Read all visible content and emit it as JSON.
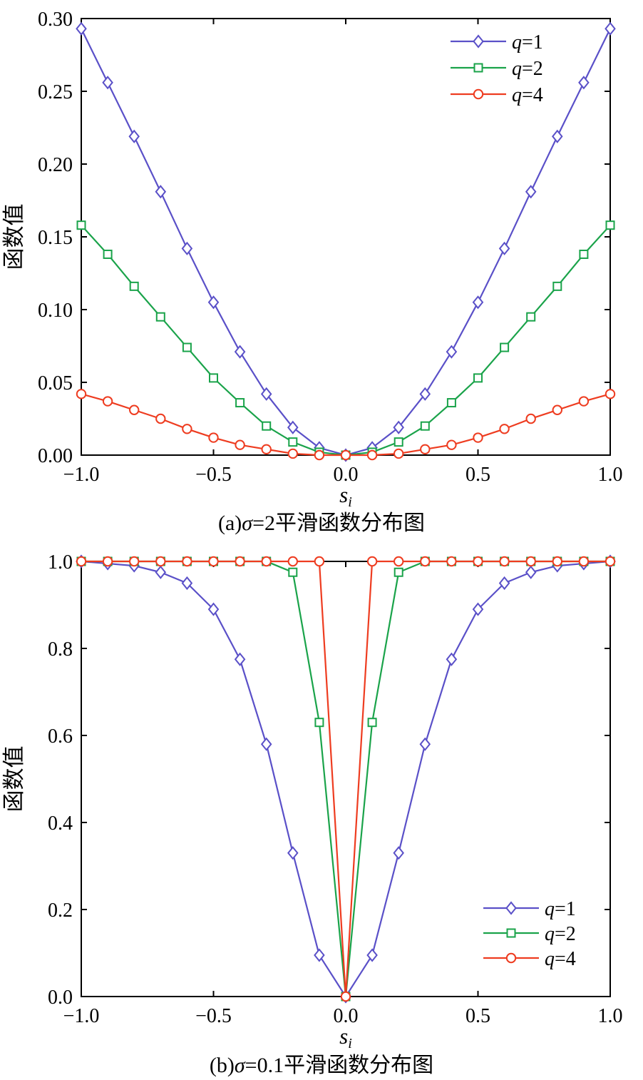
{
  "accent_colors": {
    "q1_blue": "#5a50c8",
    "q2_green": "#1aa34a",
    "q4_red": "#ee3c20"
  },
  "chart_data": [
    {
      "type": "line",
      "title": "",
      "caption_prefix": "(a)",
      "caption_symbol": "σ",
      "caption_rest": "=2平滑函数分布图",
      "xlabel_main": "s",
      "xlabel_sub": "i",
      "ylabel": "函数值",
      "xlim": [
        -1,
        1
      ],
      "ylim": [
        0,
        0.3
      ],
      "grid": false,
      "legend_position": "top-right",
      "xticks": [
        {
          "v": -1.0,
          "label": "−1.0"
        },
        {
          "v": -0.5,
          "label": "−0.5"
        },
        {
          "v": 0.0,
          "label": "0.0"
        },
        {
          "v": 0.5,
          "label": "0.5"
        },
        {
          "v": 1.0,
          "label": "1.0"
        }
      ],
      "yticks": [
        {
          "v": 0.0,
          "label": "0.00"
        },
        {
          "v": 0.05,
          "label": "0.05"
        },
        {
          "v": 0.1,
          "label": "0.10"
        },
        {
          "v": 0.15,
          "label": "0.15"
        },
        {
          "v": 0.2,
          "label": "0.20"
        },
        {
          "v": 0.25,
          "label": "0.25"
        },
        {
          "v": 0.3,
          "label": "0.30"
        }
      ],
      "x": [
        -1.0,
        -0.9,
        -0.8,
        -0.7,
        -0.6,
        -0.5,
        -0.4,
        -0.3,
        -0.2,
        -0.1,
        0.0,
        0.1,
        0.2,
        0.3,
        0.4,
        0.5,
        0.6,
        0.7,
        0.8,
        0.9,
        1.0
      ],
      "series": [
        {
          "name": "q=1",
          "label_var": "q",
          "label_rest": "=1",
          "color": "#5a50c8",
          "marker": "diamond",
          "values": [
            0.293,
            0.256,
            0.219,
            0.181,
            0.142,
            0.105,
            0.071,
            0.042,
            0.019,
            0.005,
            0.0,
            0.005,
            0.019,
            0.042,
            0.071,
            0.105,
            0.142,
            0.181,
            0.219,
            0.256,
            0.293
          ]
        },
        {
          "name": "q=2",
          "label_var": "q",
          "label_rest": "=2",
          "color": "#1aa34a",
          "marker": "square",
          "values": [
            0.158,
            0.138,
            0.116,
            0.095,
            0.074,
            0.053,
            0.036,
            0.02,
            0.009,
            0.002,
            0.0,
            0.002,
            0.009,
            0.02,
            0.036,
            0.053,
            0.074,
            0.095,
            0.116,
            0.138,
            0.158
          ]
        },
        {
          "name": "q=4",
          "label_var": "q",
          "label_rest": "=4",
          "color": "#ee3c20",
          "marker": "circle",
          "values": [
            0.042,
            0.037,
            0.031,
            0.025,
            0.018,
            0.012,
            0.007,
            0.004,
            0.001,
            0.0,
            0.0,
            0.0,
            0.001,
            0.004,
            0.007,
            0.012,
            0.018,
            0.025,
            0.031,
            0.037,
            0.042
          ]
        }
      ]
    },
    {
      "type": "line",
      "title": "",
      "caption_prefix": "(b)",
      "caption_symbol": "σ",
      "caption_rest": "=0.1平滑函数分布图",
      "xlabel_main": "s",
      "xlabel_sub": "i",
      "ylabel": "函数值",
      "xlim": [
        -1,
        1
      ],
      "ylim": [
        0,
        1.0
      ],
      "grid": false,
      "legend_position": "lower-right",
      "xticks": [
        {
          "v": -1.0,
          "label": "−1.0"
        },
        {
          "v": -0.5,
          "label": "−0.5"
        },
        {
          "v": 0.0,
          "label": "0.0"
        },
        {
          "v": 0.5,
          "label": "0.5"
        },
        {
          "v": 1.0,
          "label": "1.0"
        }
      ],
      "yticks": [
        {
          "v": 0.0,
          "label": "0.0"
        },
        {
          "v": 0.2,
          "label": "0.2"
        },
        {
          "v": 0.4,
          "label": "0.4"
        },
        {
          "v": 0.6,
          "label": "0.6"
        },
        {
          "v": 0.8,
          "label": "0.8"
        },
        {
          "v": 1.0,
          "label": "1.0"
        }
      ],
      "x": [
        -1.0,
        -0.9,
        -0.8,
        -0.7,
        -0.6,
        -0.5,
        -0.4,
        -0.3,
        -0.2,
        -0.1,
        0.0,
        0.1,
        0.2,
        0.3,
        0.4,
        0.5,
        0.6,
        0.7,
        0.8,
        0.9,
        1.0
      ],
      "series": [
        {
          "name": "q=1",
          "label_var": "q",
          "label_rest": "=1",
          "color": "#5a50c8",
          "marker": "diamond",
          "values": [
            1.0,
            0.995,
            0.99,
            0.975,
            0.95,
            0.89,
            0.775,
            0.58,
            0.33,
            0.095,
            0.0,
            0.095,
            0.33,
            0.58,
            0.775,
            0.89,
            0.95,
            0.975,
            0.99,
            0.995,
            1.0
          ]
        },
        {
          "name": "q=2",
          "label_var": "q",
          "label_rest": "=2",
          "color": "#1aa34a",
          "marker": "square",
          "values": [
            1.0,
            1.0,
            1.0,
            1.0,
            1.0,
            1.0,
            1.0,
            1.0,
            0.975,
            0.63,
            0.0,
            0.63,
            0.975,
            1.0,
            1.0,
            1.0,
            1.0,
            1.0,
            1.0,
            1.0,
            1.0
          ]
        },
        {
          "name": "q=4",
          "label_var": "q",
          "label_rest": "=4",
          "color": "#ee3c20",
          "marker": "circle",
          "values": [
            1.0,
            1.0,
            1.0,
            1.0,
            1.0,
            1.0,
            1.0,
            1.0,
            1.0,
            1.0,
            0.0,
            1.0,
            1.0,
            1.0,
            1.0,
            1.0,
            1.0,
            1.0,
            1.0,
            1.0,
            1.0
          ]
        }
      ]
    }
  ]
}
